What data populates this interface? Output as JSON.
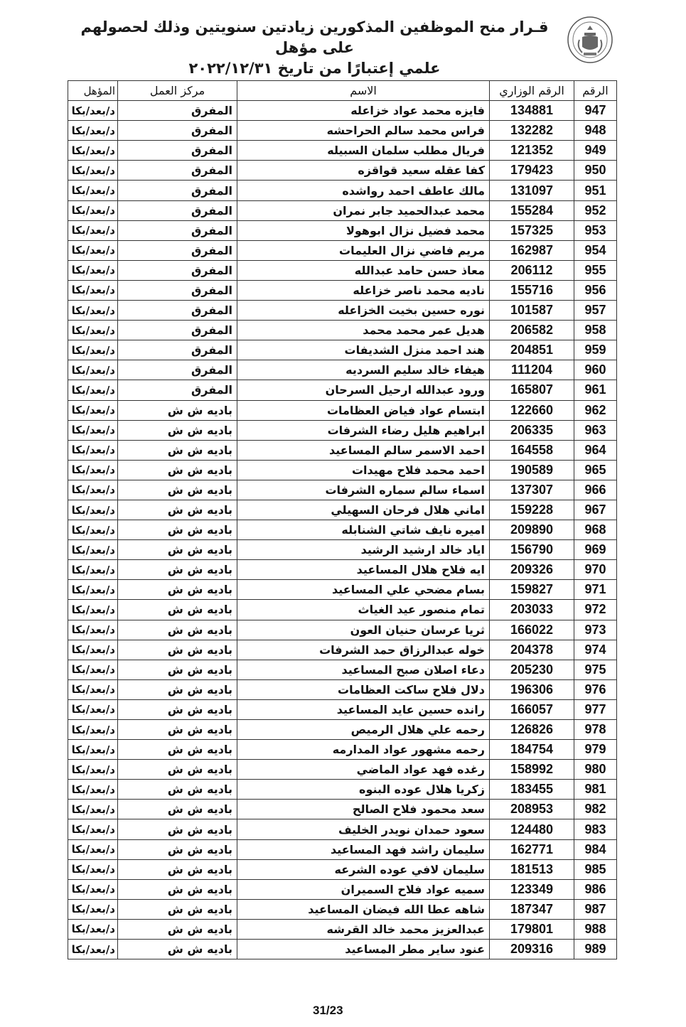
{
  "header": {
    "title_line1": "قـرار منح الموظفين المذكورين زيادتين سنويتين وذلك لحصولهم على مؤهل",
    "title_line2": "علمي إعتبارًا من تاريخ ٢٠٢٢/١٢/٣١",
    "seal_icon": "jordan-coat-of-arms-seal"
  },
  "table": {
    "columns": {
      "num": "الرقم",
      "id": "الرقم الوزاري",
      "name": "الاسم",
      "center": "مركز العمل",
      "qual": "المؤهل"
    },
    "rows": [
      [
        "947",
        "134881",
        "فايزه محمد عواد خزاعله",
        "المفرق",
        "د/بعد/بكا"
      ],
      [
        "948",
        "132282",
        "فراس محمد سالم الحراحشه",
        "المفرق",
        "د/بعد/بكا"
      ],
      [
        "949",
        "121352",
        "فريال مطلب سلمان السبيله",
        "المفرق",
        "د/بعد/بكا"
      ],
      [
        "950",
        "179423",
        "كفا عقله سعيد قواقزه",
        "المفرق",
        "د/بعد/بكا"
      ],
      [
        "951",
        "131097",
        "مالك عاطف احمد رواشده",
        "المفرق",
        "د/بعد/بكا"
      ],
      [
        "952",
        "155284",
        "محمد عبدالحميد جابر نمران",
        "المفرق",
        "د/بعد/بكا"
      ],
      [
        "953",
        "157325",
        "محمد فضيل نزال ابوهولا",
        "المفرق",
        "د/بعد/بكا"
      ],
      [
        "954",
        "162987",
        "مريم فاضي نزال العليمات",
        "المفرق",
        "د/بعد/بكا"
      ],
      [
        "955",
        "206112",
        "معاذ حسن حامد عبدالله",
        "المفرق",
        "د/بعد/بكا"
      ],
      [
        "956",
        "155716",
        "ناديه محمد ناصر خزاعله",
        "المفرق",
        "د/بعد/بكا"
      ],
      [
        "957",
        "101587",
        "نوره حسين بخيت الخزاعله",
        "المفرق",
        "د/بعد/بكا"
      ],
      [
        "958",
        "206582",
        "هديل عمر محمد محمد",
        "المفرق",
        "د/بعد/بكا"
      ],
      [
        "959",
        "204851",
        "هند احمد منزل الشديفات",
        "المفرق",
        "د/بعد/بكا"
      ],
      [
        "960",
        "111204",
        "هيفاء خالد سليم السرديه",
        "المفرق",
        "د/بعد/بكا"
      ],
      [
        "961",
        "165807",
        "ورود عبدالله ارحيل السرحان",
        "المفرق",
        "د/بعد/بكا"
      ],
      [
        "962",
        "122660",
        "ابتسام عواد فياض العظامات",
        "باديه ش ش",
        "د/بعد/بكا"
      ],
      [
        "963",
        "206335",
        "ابراهيم هليل رضاء الشرفات",
        "باديه ش ش",
        "د/بعد/بكا"
      ],
      [
        "964",
        "164558",
        "احمد الاسمر سالم المساعيد",
        "باديه ش ش",
        "د/بعد/بكا"
      ],
      [
        "965",
        "190589",
        "احمد محمد فلاح مهيدات",
        "باديه ش ش",
        "د/بعد/بكا"
      ],
      [
        "966",
        "137307",
        "اسماء سالم سماره الشرفات",
        "باديه ش ش",
        "د/بعد/بكا"
      ],
      [
        "967",
        "159228",
        "اماني هلال فرحان السهيلي",
        "باديه ش ش",
        "د/بعد/بكا"
      ],
      [
        "968",
        "209890",
        "اميره نايف شاتي الشنابله",
        "باديه ش ش",
        "د/بعد/بكا"
      ],
      [
        "969",
        "156790",
        "اياد خالد ارشيد الرشيد",
        "باديه ش ش",
        "د/بعد/بكا"
      ],
      [
        "970",
        "209326",
        "ايه فلاح هلال المساعيد",
        "باديه ش ش",
        "د/بعد/بكا"
      ],
      [
        "971",
        "159827",
        "بسام مضحي علي المساعيد",
        "باديه ش ش",
        "د/بعد/بكا"
      ],
      [
        "972",
        "203033",
        "تمام منصور عيد الغياث",
        "باديه ش ش",
        "د/بعد/بكا"
      ],
      [
        "973",
        "166022",
        "ثريا عرسان حنيان العون",
        "باديه ش ش",
        "د/بعد/بكا"
      ],
      [
        "974",
        "204378",
        "خوله عبدالرزاق حمد الشرفات",
        "باديه ش ش",
        "د/بعد/بكا"
      ],
      [
        "975",
        "205230",
        "دعاء اصلان صبح المساعيد",
        "باديه ش ش",
        "د/بعد/بكا"
      ],
      [
        "976",
        "196306",
        "دلال فلاح ساكت العظامات",
        "باديه ش ش",
        "د/بعد/بكا"
      ],
      [
        "977",
        "166057",
        "رانده حسين عايد المساعيد",
        "باديه ش ش",
        "د/بعد/بكا"
      ],
      [
        "978",
        "126826",
        "رحمه علي هلال الرميص",
        "باديه ش ش",
        "د/بعد/بكا"
      ],
      [
        "979",
        "184754",
        "رحمه مشهور عواد المدارمه",
        "باديه ش ش",
        "د/بعد/بكا"
      ],
      [
        "980",
        "158992",
        "رغده فهد عواد الماضي",
        "باديه ش ش",
        "د/بعد/بكا"
      ],
      [
        "981",
        "183455",
        "زكريا هلال عوده البنوه",
        "باديه ش ش",
        "د/بعد/بكا"
      ],
      [
        "982",
        "208953",
        "سعد محمود فلاح الصالح",
        "باديه ش ش",
        "د/بعد/بكا"
      ],
      [
        "983",
        "124480",
        "سعود حمدان نويدر الخليف",
        "باديه ش ش",
        "د/بعد/بكا"
      ],
      [
        "984",
        "162771",
        "سليمان راشد فهد المساعيد",
        "باديه ش ش",
        "د/بعد/بكا"
      ],
      [
        "985",
        "181513",
        "سليمان لافي عوده الشرعه",
        "باديه ش ش",
        "د/بعد/بكا"
      ],
      [
        "986",
        "123349",
        "سميه عواد فلاح السميران",
        "باديه ش ش",
        "د/بعد/بكا"
      ],
      [
        "987",
        "187347",
        "شاهه عطا الله فيضان المساعيد",
        "باديه ش ش",
        "د/بعد/بكا"
      ],
      [
        "988",
        "179801",
        "عبدالعزيز محمد خالد القرشه",
        "باديه ش ش",
        "د/بعد/بكا"
      ],
      [
        "989",
        "209316",
        "عنود ساير مطر المساعيد",
        "باديه ش ش",
        "د/بعد/بكا"
      ]
    ]
  },
  "footer": {
    "page": "31/23"
  }
}
